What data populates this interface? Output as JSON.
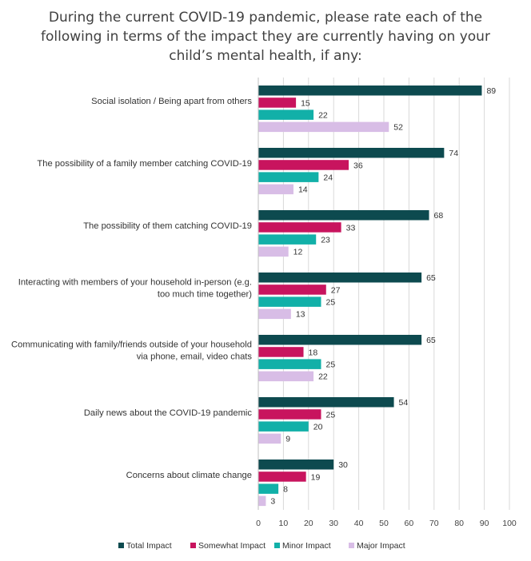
{
  "chart_data": {
    "type": "bar",
    "orientation": "horizontal",
    "title": "During the current COVID-19 pandemic, please rate each of the\nfollowing in terms of the impact they are currently having on your\nchild’s mental health, if any:",
    "categories": [
      "Social isolation / Being apart from others",
      "The possibility of a family member catching COVID-19",
      "The possibility of them catching COVID-19",
      "Interacting with members of your household in-person (e.g.\ntoo much time together)",
      "Communicating with family/friends outside of your household\nvia phone, email, video chats",
      "Daily news about the COVID-19 pandemic",
      "Concerns about climate change"
    ],
    "series": [
      {
        "name": "Total Impact",
        "color": "#0d4a4f",
        "values": [
          89,
          74,
          68,
          65,
          65,
          54,
          30
        ]
      },
      {
        "name": "Somewhat Impact",
        "color": "#c8145e",
        "values": [
          15,
          36,
          33,
          27,
          18,
          25,
          19
        ]
      },
      {
        "name": "Minor Impact",
        "color": "#12b0a8",
        "values": [
          22,
          24,
          23,
          25,
          25,
          20,
          8
        ]
      },
      {
        "name": "Major Impact",
        "color": "#d8bde6",
        "values": [
          52,
          14,
          12,
          13,
          22,
          9,
          3
        ]
      }
    ],
    "xlim": [
      0,
      100
    ],
    "xticks": [
      0,
      10,
      20,
      30,
      40,
      50,
      60,
      70,
      80,
      90,
      100
    ],
    "grid": true,
    "legend_position": "bottom"
  }
}
